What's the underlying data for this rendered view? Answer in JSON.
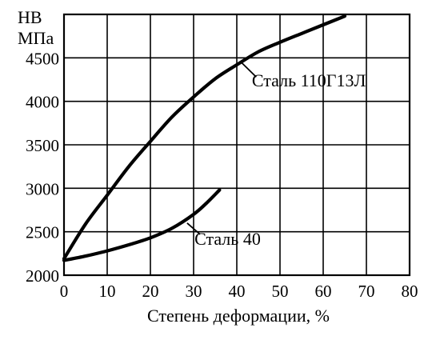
{
  "chart_data": {
    "type": "line",
    "title": "",
    "xlabel": "Степень деформации, %",
    "ylabel_line1": "НВ",
    "ylabel_line2": "МПа",
    "xlim": [
      0,
      80
    ],
    "ylim": [
      2000,
      5000
    ],
    "x_ticks": [
      0,
      10,
      20,
      30,
      40,
      50,
      60,
      70,
      80
    ],
    "y_ticks": [
      2000,
      2500,
      3000,
      3500,
      4000,
      4500
    ],
    "x_tick_labels": [
      "0",
      "10",
      "20",
      "30",
      "40",
      "50",
      "60",
      "70",
      "80"
    ],
    "y_tick_labels": [
      "2000",
      "2500",
      "3000",
      "3500",
      "4000",
      "4500"
    ],
    "grid": true,
    "legend": "none",
    "series": [
      {
        "name": "Сталь 110Г13Л",
        "x": [
          0,
          5,
          10,
          15,
          20,
          25,
          30,
          35,
          40,
          45,
          50,
          55,
          60,
          65
        ],
        "y": [
          2190,
          2590,
          2920,
          3250,
          3540,
          3820,
          4050,
          4260,
          4420,
          4570,
          4680,
          4780,
          4880,
          4980
        ]
      },
      {
        "name": "Сталь 40",
        "x": [
          0,
          5,
          10,
          15,
          20,
          25,
          30,
          33,
          36
        ],
        "y": [
          2170,
          2220,
          2280,
          2350,
          2430,
          2540,
          2700,
          2830,
          2980
        ]
      }
    ]
  }
}
